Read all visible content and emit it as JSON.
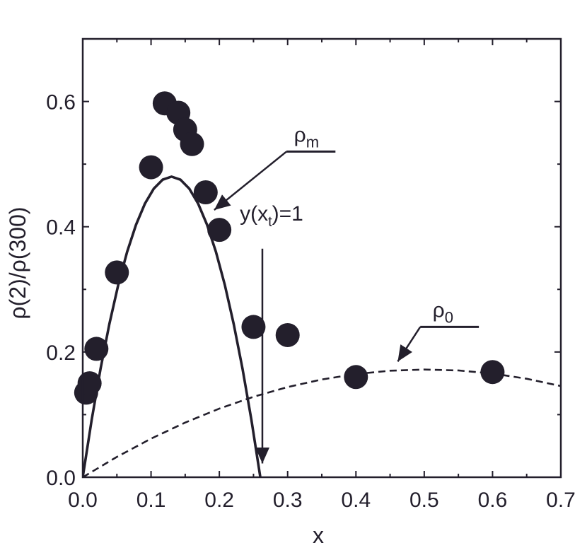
{
  "chart_data": {
    "type": "scatter",
    "title": "",
    "xlabel": "x",
    "ylabel": "ρ(2)/ρ(300)",
    "xlim": [
      0.0,
      0.7
    ],
    "ylim": [
      0.0,
      0.7
    ],
    "x_ticks": [
      "0.0",
      "0.1",
      "0.2",
      "0.3",
      "0.4",
      "0.5",
      "0.6",
      "0.7"
    ],
    "y_ticks": [
      "0.0",
      "0.2",
      "0.4",
      "0.6"
    ],
    "grid": false,
    "colors": {
      "ink": "#231f2c"
    },
    "points": {
      "x": [
        0.005,
        0.01,
        0.02,
        0.05,
        0.1,
        0.12,
        0.14,
        0.15,
        0.16,
        0.18,
        0.2,
        0.25,
        0.3,
        0.4,
        0.6
      ],
      "y": [
        0.135,
        0.15,
        0.205,
        0.327,
        0.495,
        0.597,
        0.582,
        0.555,
        0.532,
        0.455,
        0.395,
        0.24,
        0.227,
        0.16,
        0.168
      ]
    },
    "series": [
      {
        "style": "solid",
        "x": [
          0.0,
          0.013,
          0.026,
          0.039,
          0.052,
          0.065,
          0.078,
          0.091,
          0.104,
          0.117,
          0.13,
          0.143,
          0.156,
          0.169,
          0.182,
          0.195,
          0.208,
          0.221,
          0.234,
          0.247,
          0.26
        ],
        "y": [
          0.0,
          0.0912,
          0.1728,
          0.2448,
          0.3072,
          0.36,
          0.4032,
          0.4368,
          0.4608,
          0.4752,
          0.48,
          0.4752,
          0.4608,
          0.4368,
          0.4032,
          0.36,
          0.3072,
          0.2448,
          0.1728,
          0.0912,
          0.0
        ]
      },
      {
        "style": "dashed",
        "x": [
          0.0,
          0.05,
          0.1,
          0.15,
          0.2,
          0.25,
          0.3,
          0.35,
          0.4,
          0.45,
          0.5,
          0.55,
          0.6,
          0.65,
          0.7
        ],
        "y": [
          0.0,
          0.0325,
          0.0616,
          0.0873,
          0.1096,
          0.1285,
          0.144,
          0.1561,
          0.1648,
          0.1701,
          0.172,
          0.1705,
          0.1656,
          0.1573,
          0.1456
        ]
      }
    ],
    "annotations": {
      "rho_m": {
        "base": "ρ",
        "sub": "m",
        "underline_x": [
          0.29,
          0.37
        ],
        "y": 0.52,
        "arrow_to": [
          0.18,
          0.42
        ]
      },
      "rho_0": {
        "base": "ρ",
        "sub": "0",
        "underline_x": [
          0.49,
          0.58
        ],
        "y": 0.24,
        "arrow_to": [
          0.455,
          0.178
        ]
      },
      "yxt": {
        "pre": "y(x",
        "sub": "t",
        "post": ")=1",
        "text_at": [
          0.23,
          0.41
        ],
        "arrow_x": 0.263,
        "arrow_from_y": 0.365,
        "arrow_to_y": 0.022
      }
    }
  }
}
